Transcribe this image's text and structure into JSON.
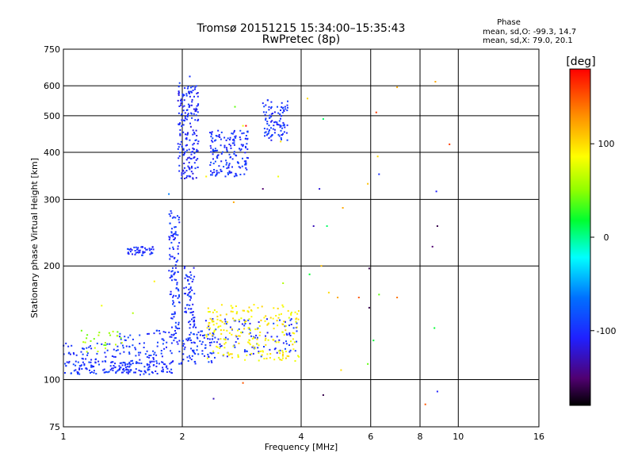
{
  "chart_data": {
    "type": "scatter",
    "title": "Tromsø 20151215 15:34:00–15:35:43",
    "subtitle": "RwPretec (8p)",
    "xlabel": "Frequency [MHz]",
    "ylabel": "Stationary phase Virtual Height [km]",
    "x_scale": "log",
    "y_scale": "log",
    "xlim": [
      1,
      16
    ],
    "ylim": [
      75,
      750
    ],
    "x_ticks": [
      1,
      2,
      4,
      6,
      8,
      10,
      16
    ],
    "y_ticks": [
      75,
      100,
      200,
      300,
      400,
      500,
      600,
      750
    ],
    "grid": true,
    "colorbar": {
      "label": "[deg]",
      "range": [
        -180,
        180
      ],
      "ticks": [
        100,
        0,
        -100
      ]
    },
    "phase_stats": {
      "heading": "Phase",
      "line_o": "mean, sd,O: -99.3, 14.7",
      "line_x": "mean, sd,X: 79.0, 20.1"
    },
    "clusters": [
      {
        "fmin": 1.0,
        "fmax": 1.9,
        "hmin": 103,
        "hmax": 112,
        "phase": -100,
        "n": 170
      },
      {
        "fmin": 1.35,
        "fmax": 2.5,
        "hmin": 110,
        "hmax": 135,
        "phase": -100,
        "n": 150
      },
      {
        "fmin": 2.0,
        "fmax": 3.9,
        "hmin": 115,
        "hmax": 145,
        "phase": -100,
        "n": 120
      },
      {
        "fmin": 1.0,
        "fmax": 1.35,
        "hmin": 112,
        "hmax": 125,
        "phase": -100,
        "n": 40
      },
      {
        "fmin": 1.85,
        "fmax": 1.97,
        "hmin": 130,
        "hmax": 280,
        "phase": -100,
        "n": 110
      },
      {
        "fmin": 2.02,
        "fmax": 2.15,
        "hmin": 125,
        "hmax": 200,
        "phase": -100,
        "n": 70
      },
      {
        "fmin": 1.45,
        "fmax": 1.7,
        "hmin": 212,
        "hmax": 225,
        "phase": -100,
        "n": 45
      },
      {
        "fmin": 1.95,
        "fmax": 2.2,
        "hmin": 340,
        "hmax": 600,
        "phase": -105,
        "n": 190
      },
      {
        "fmin": 2.35,
        "fmax": 2.95,
        "hmin": 345,
        "hmax": 460,
        "phase": -100,
        "n": 160
      },
      {
        "fmin": 3.2,
        "fmax": 3.7,
        "hmin": 430,
        "hmax": 550,
        "phase": -100,
        "n": 95
      },
      {
        "fmin": 2.3,
        "fmax": 3.95,
        "hmin": 112,
        "hmax": 158,
        "phase": 90,
        "n": 210
      },
      {
        "fmin": 1.1,
        "fmax": 1.45,
        "hmin": 118,
        "hmax": 135,
        "phase": 55,
        "n": 25
      }
    ],
    "sparse_points": [
      [
        1.97,
        610,
        -90
      ],
      [
        2.09,
        635,
        -100
      ],
      [
        2.72,
        528,
        40
      ],
      [
        2.85,
        470,
        80
      ],
      [
        2.9,
        470,
        180
      ],
      [
        4.15,
        555,
        100
      ],
      [
        4.55,
        490,
        10
      ],
      [
        6.2,
        510,
        160
      ],
      [
        6.25,
        390,
        100
      ],
      [
        7.0,
        595,
        120
      ],
      [
        8.75,
        615,
        120
      ],
      [
        9.5,
        420,
        160
      ],
      [
        6.3,
        350,
        -100
      ],
      [
        4.45,
        320,
        -120
      ],
      [
        5.9,
        330,
        110
      ],
      [
        8.8,
        315,
        -110
      ],
      [
        3.2,
        320,
        -150
      ],
      [
        2.7,
        295,
        120
      ],
      [
        2.3,
        345,
        90
      ],
      [
        3.5,
        345,
        80
      ],
      [
        4.3,
        255,
        -130
      ],
      [
        4.65,
        255,
        10
      ],
      [
        5.1,
        285,
        120
      ],
      [
        8.6,
        225,
        -150
      ],
      [
        8.85,
        255,
        -160
      ],
      [
        4.2,
        190,
        20
      ],
      [
        4.5,
        200,
        110
      ],
      [
        5.95,
        197,
        -160
      ],
      [
        3.6,
        180,
        60
      ],
      [
        4.7,
        170,
        100
      ],
      [
        5.6,
        165,
        150
      ],
      [
        4.95,
        165,
        120
      ],
      [
        6.3,
        168,
        40
      ],
      [
        7.0,
        165,
        140
      ],
      [
        5.95,
        155,
        -160
      ],
      [
        8.7,
        137,
        20
      ],
      [
        6.1,
        127,
        20
      ],
      [
        5.9,
        110,
        40
      ],
      [
        5.05,
        106,
        100
      ],
      [
        2.85,
        98,
        150
      ],
      [
        4.55,
        91,
        -160
      ],
      [
        8.85,
        93,
        -110
      ],
      [
        8.25,
        86,
        150
      ],
      [
        2.4,
        89,
        -130
      ],
      [
        1.5,
        150,
        60
      ],
      [
        1.25,
        157,
        80
      ],
      [
        1.85,
        310,
        -60
      ],
      [
        1.7,
        182,
        90
      ],
      [
        3.55,
        427,
        100
      ],
      [
        2.55,
        128,
        70
      ]
    ]
  }
}
